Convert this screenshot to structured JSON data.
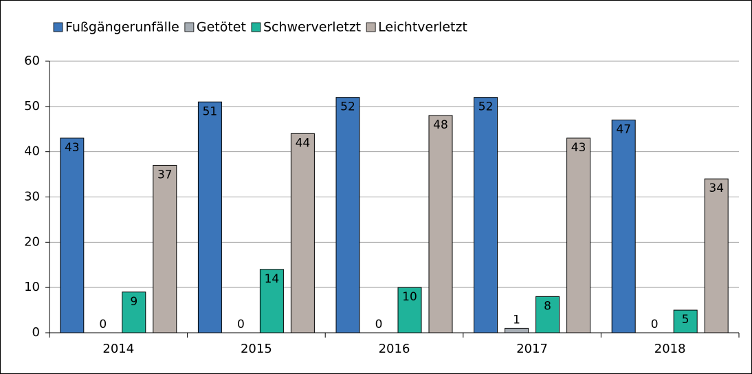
{
  "chart_data": {
    "type": "bar",
    "categories": [
      "2014",
      "2015",
      "2016",
      "2017",
      "2018"
    ],
    "series": [
      {
        "name": "Fußgängerunfälle",
        "color": "#3b75b9",
        "values": [
          43,
          51,
          52,
          52,
          47
        ]
      },
      {
        "name": "Getötet",
        "color": "#a6adb4",
        "values": [
          0,
          0,
          0,
          1,
          0
        ]
      },
      {
        "name": "Schwerverletzt",
        "color": "#1fb39a",
        "values": [
          9,
          14,
          10,
          8,
          5
        ]
      },
      {
        "name": "Leichtverletzt",
        "color": "#b8aea8",
        "values": [
          37,
          44,
          48,
          43,
          34
        ]
      }
    ],
    "ylim": [
      0,
      60
    ],
    "yticks": [
      0,
      10,
      20,
      30,
      40,
      50,
      60
    ],
    "grid": true,
    "legend": "top"
  }
}
